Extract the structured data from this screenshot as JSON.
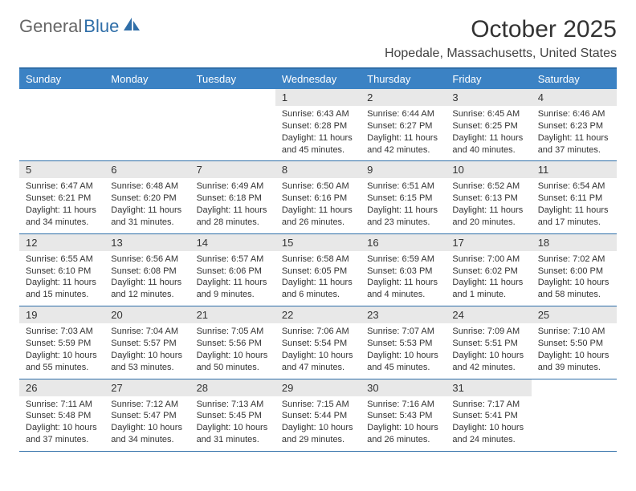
{
  "logo": {
    "general": "General",
    "blue": "Blue"
  },
  "title": "October 2025",
  "location": "Hopedale, Massachusetts, United States",
  "colors": {
    "header_bg": "#3b82c4",
    "header_text": "#ffffff",
    "border": "#2f6ea8",
    "daynum_bg": "#e8e8e8",
    "text": "#333333",
    "logo_gray": "#666666",
    "logo_blue": "#2f6ea8",
    "page_bg": "#ffffff"
  },
  "typography": {
    "title_fontsize": 30,
    "location_fontsize": 16,
    "header_fontsize": 13,
    "daynum_fontsize": 13,
    "content_fontsize": 11
  },
  "day_headers": [
    "Sunday",
    "Monday",
    "Tuesday",
    "Wednesday",
    "Thursday",
    "Friday",
    "Saturday"
  ],
  "weeks": [
    [
      {
        "empty": true
      },
      {
        "empty": true
      },
      {
        "empty": true
      },
      {
        "num": "1",
        "sunrise": "Sunrise: 6:43 AM",
        "sunset": "Sunset: 6:28 PM",
        "daylight": "Daylight: 11 hours and 45 minutes."
      },
      {
        "num": "2",
        "sunrise": "Sunrise: 6:44 AM",
        "sunset": "Sunset: 6:27 PM",
        "daylight": "Daylight: 11 hours and 42 minutes."
      },
      {
        "num": "3",
        "sunrise": "Sunrise: 6:45 AM",
        "sunset": "Sunset: 6:25 PM",
        "daylight": "Daylight: 11 hours and 40 minutes."
      },
      {
        "num": "4",
        "sunrise": "Sunrise: 6:46 AM",
        "sunset": "Sunset: 6:23 PM",
        "daylight": "Daylight: 11 hours and 37 minutes."
      }
    ],
    [
      {
        "num": "5",
        "sunrise": "Sunrise: 6:47 AM",
        "sunset": "Sunset: 6:21 PM",
        "daylight": "Daylight: 11 hours and 34 minutes."
      },
      {
        "num": "6",
        "sunrise": "Sunrise: 6:48 AM",
        "sunset": "Sunset: 6:20 PM",
        "daylight": "Daylight: 11 hours and 31 minutes."
      },
      {
        "num": "7",
        "sunrise": "Sunrise: 6:49 AM",
        "sunset": "Sunset: 6:18 PM",
        "daylight": "Daylight: 11 hours and 28 minutes."
      },
      {
        "num": "8",
        "sunrise": "Sunrise: 6:50 AM",
        "sunset": "Sunset: 6:16 PM",
        "daylight": "Daylight: 11 hours and 26 minutes."
      },
      {
        "num": "9",
        "sunrise": "Sunrise: 6:51 AM",
        "sunset": "Sunset: 6:15 PM",
        "daylight": "Daylight: 11 hours and 23 minutes."
      },
      {
        "num": "10",
        "sunrise": "Sunrise: 6:52 AM",
        "sunset": "Sunset: 6:13 PM",
        "daylight": "Daylight: 11 hours and 20 minutes."
      },
      {
        "num": "11",
        "sunrise": "Sunrise: 6:54 AM",
        "sunset": "Sunset: 6:11 PM",
        "daylight": "Daylight: 11 hours and 17 minutes."
      }
    ],
    [
      {
        "num": "12",
        "sunrise": "Sunrise: 6:55 AM",
        "sunset": "Sunset: 6:10 PM",
        "daylight": "Daylight: 11 hours and 15 minutes."
      },
      {
        "num": "13",
        "sunrise": "Sunrise: 6:56 AM",
        "sunset": "Sunset: 6:08 PM",
        "daylight": "Daylight: 11 hours and 12 minutes."
      },
      {
        "num": "14",
        "sunrise": "Sunrise: 6:57 AM",
        "sunset": "Sunset: 6:06 PM",
        "daylight": "Daylight: 11 hours and 9 minutes."
      },
      {
        "num": "15",
        "sunrise": "Sunrise: 6:58 AM",
        "sunset": "Sunset: 6:05 PM",
        "daylight": "Daylight: 11 hours and 6 minutes."
      },
      {
        "num": "16",
        "sunrise": "Sunrise: 6:59 AM",
        "sunset": "Sunset: 6:03 PM",
        "daylight": "Daylight: 11 hours and 4 minutes."
      },
      {
        "num": "17",
        "sunrise": "Sunrise: 7:00 AM",
        "sunset": "Sunset: 6:02 PM",
        "daylight": "Daylight: 11 hours and 1 minute."
      },
      {
        "num": "18",
        "sunrise": "Sunrise: 7:02 AM",
        "sunset": "Sunset: 6:00 PM",
        "daylight": "Daylight: 10 hours and 58 minutes."
      }
    ],
    [
      {
        "num": "19",
        "sunrise": "Sunrise: 7:03 AM",
        "sunset": "Sunset: 5:59 PM",
        "daylight": "Daylight: 10 hours and 55 minutes."
      },
      {
        "num": "20",
        "sunrise": "Sunrise: 7:04 AM",
        "sunset": "Sunset: 5:57 PM",
        "daylight": "Daylight: 10 hours and 53 minutes."
      },
      {
        "num": "21",
        "sunrise": "Sunrise: 7:05 AM",
        "sunset": "Sunset: 5:56 PM",
        "daylight": "Daylight: 10 hours and 50 minutes."
      },
      {
        "num": "22",
        "sunrise": "Sunrise: 7:06 AM",
        "sunset": "Sunset: 5:54 PM",
        "daylight": "Daylight: 10 hours and 47 minutes."
      },
      {
        "num": "23",
        "sunrise": "Sunrise: 7:07 AM",
        "sunset": "Sunset: 5:53 PM",
        "daylight": "Daylight: 10 hours and 45 minutes."
      },
      {
        "num": "24",
        "sunrise": "Sunrise: 7:09 AM",
        "sunset": "Sunset: 5:51 PM",
        "daylight": "Daylight: 10 hours and 42 minutes."
      },
      {
        "num": "25",
        "sunrise": "Sunrise: 7:10 AM",
        "sunset": "Sunset: 5:50 PM",
        "daylight": "Daylight: 10 hours and 39 minutes."
      }
    ],
    [
      {
        "num": "26",
        "sunrise": "Sunrise: 7:11 AM",
        "sunset": "Sunset: 5:48 PM",
        "daylight": "Daylight: 10 hours and 37 minutes."
      },
      {
        "num": "27",
        "sunrise": "Sunrise: 7:12 AM",
        "sunset": "Sunset: 5:47 PM",
        "daylight": "Daylight: 10 hours and 34 minutes."
      },
      {
        "num": "28",
        "sunrise": "Sunrise: 7:13 AM",
        "sunset": "Sunset: 5:45 PM",
        "daylight": "Daylight: 10 hours and 31 minutes."
      },
      {
        "num": "29",
        "sunrise": "Sunrise: 7:15 AM",
        "sunset": "Sunset: 5:44 PM",
        "daylight": "Daylight: 10 hours and 29 minutes."
      },
      {
        "num": "30",
        "sunrise": "Sunrise: 7:16 AM",
        "sunset": "Sunset: 5:43 PM",
        "daylight": "Daylight: 10 hours and 26 minutes."
      },
      {
        "num": "31",
        "sunrise": "Sunrise: 7:17 AM",
        "sunset": "Sunset: 5:41 PM",
        "daylight": "Daylight: 10 hours and 24 minutes."
      },
      {
        "empty": true
      }
    ]
  ]
}
